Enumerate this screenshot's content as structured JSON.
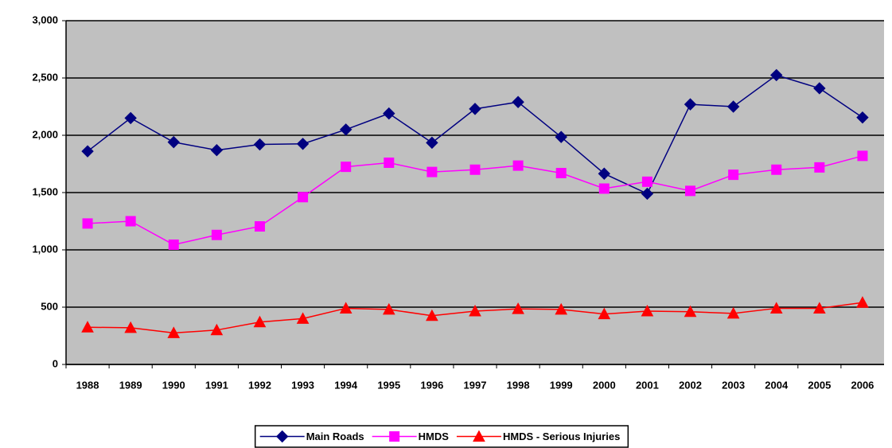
{
  "chart_data": {
    "type": "line",
    "categories": [
      "1988",
      "1989",
      "1990",
      "1991",
      "1992",
      "1993",
      "1994",
      "1995",
      "1996",
      "1997",
      "1998",
      "1999",
      "2000",
      "2001",
      "2002",
      "2003",
      "2004",
      "2005",
      "2006"
    ],
    "series": [
      {
        "name": "Main Roads",
        "color": "#000080",
        "marker": "diamond",
        "values": [
          1860,
          2150,
          1940,
          1870,
          1920,
          1925,
          2050,
          2190,
          1935,
          2230,
          2290,
          1985,
          1665,
          1490,
          2270,
          2250,
          2525,
          2410,
          2155
        ]
      },
      {
        "name": "HMDS",
        "color": "#ff00ff",
        "marker": "square",
        "values": [
          1230,
          1250,
          1045,
          1130,
          1205,
          1460,
          1725,
          1760,
          1680,
          1700,
          1735,
          1670,
          1535,
          1595,
          1515,
          1655,
          1700,
          1720,
          1820
        ]
      },
      {
        "name": "HMDS - Serious Injuries",
        "color": "#ff0000",
        "marker": "triangle",
        "values": [
          325,
          320,
          275,
          300,
          370,
          400,
          490,
          480,
          425,
          465,
          485,
          480,
          440,
          465,
          460,
          445,
          490,
          490,
          540
        ]
      }
    ],
    "ylim": [
      0,
      3000
    ],
    "yticks": [
      0,
      500,
      {
        "value": 1000,
        "label": "1,000"
      },
      {
        "value": 1500,
        "label": "1,500"
      },
      {
        "value": 2000,
        "label": "2,000"
      },
      {
        "value": 2500,
        "label": "2,500"
      },
      {
        "value": 3000,
        "label": "3,000"
      }
    ],
    "grid": true,
    "legend": "bottom",
    "plot_background": "#c0c0c0"
  }
}
